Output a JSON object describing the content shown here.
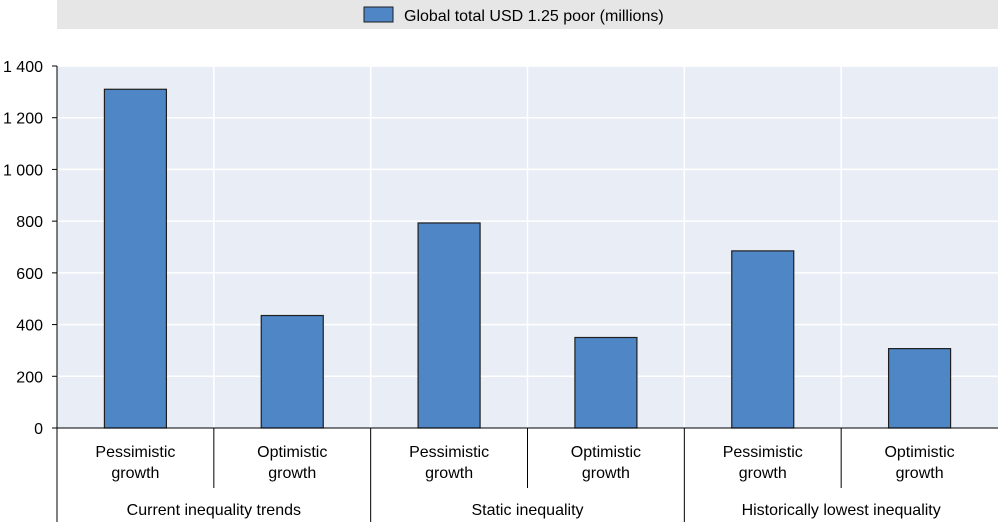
{
  "chart_data": {
    "type": "bar",
    "legend": {
      "label": "Global total USD 1.25 poor (millions)",
      "placement": "top"
    },
    "groups": [
      {
        "label": "Current inequality trends",
        "categories": [
          "Pessimistic growth",
          "Optimistic growth"
        ]
      },
      {
        "label": "Static inequality",
        "categories": [
          "Pessimistic growth",
          "Optimistic growth"
        ]
      },
      {
        "label": "Historically lowest inequality",
        "categories": [
          "Pessimistic growth",
          "Optimistic growth"
        ]
      }
    ],
    "categories": [
      "Pessimistic growth",
      "Optimistic growth",
      "Pessimistic growth",
      "Optimistic growth",
      "Pessimistic growth",
      "Optimistic growth"
    ],
    "series": [
      {
        "name": "Global total USD 1.25 poor (millions)",
        "values": [
          1310,
          435,
          793,
          350,
          685,
          307
        ]
      }
    ],
    "yticks": [
      "0",
      "200",
      "400",
      "600",
      "800",
      "1 000",
      "1 200",
      "1 400"
    ],
    "ylim": [
      0,
      1400
    ],
    "grid": true,
    "colors": {
      "bar": "#4e86c6",
      "bar_stroke": "#1f1f1f",
      "plot_bg": "#e9eef6",
      "legend_bg": "#e6e6e6",
      "grid": "#ffffff"
    }
  }
}
